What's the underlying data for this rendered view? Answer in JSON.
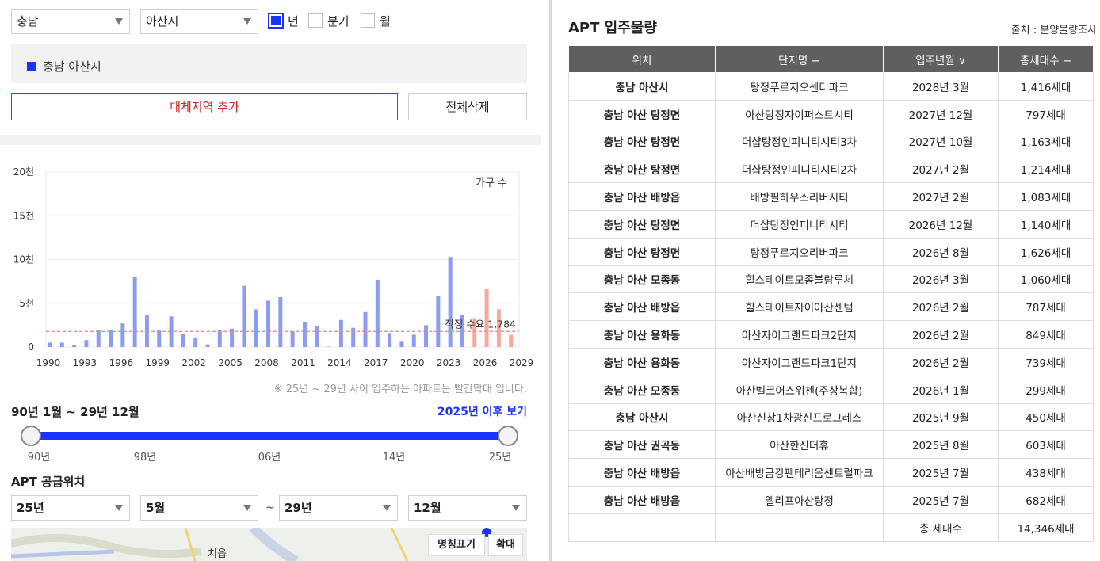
{
  "filters": {
    "province": "충남",
    "city": "아산시",
    "period_options": [
      {
        "label": "년",
        "checked": true
      },
      {
        "label": "분기",
        "checked": false
      },
      {
        "label": "월",
        "checked": false
      }
    ]
  },
  "region_list": {
    "items": [
      "충남 아산시"
    ],
    "color": "#1a33ff"
  },
  "buttons": {
    "add_region": "대체지역 추가",
    "clear_all": "전체삭제"
  },
  "chart_data": {
    "type": "bar",
    "legend": "가구 수",
    "x": [
      1990,
      1991,
      1992,
      1993,
      1994,
      1995,
      1996,
      1997,
      1998,
      1999,
      2000,
      2001,
      2002,
      2003,
      2004,
      2005,
      2006,
      2007,
      2008,
      2009,
      2010,
      2011,
      2012,
      2013,
      2014,
      2015,
      2016,
      2017,
      2018,
      2019,
      2020,
      2021,
      2022,
      2023,
      2024,
      2025,
      2026,
      2027,
      2028
    ],
    "values": [
      500,
      500,
      200,
      800,
      1900,
      2000,
      2700,
      8000,
      3700,
      1900,
      3500,
      1500,
      1100,
      300,
      2000,
      2100,
      7000,
      4300,
      5300,
      5700,
      1800,
      2900,
      2400,
      50,
      3100,
      2200,
      4000,
      7700,
      1600,
      700,
      1400,
      2500,
      5800,
      10300,
      3700,
      3300,
      6600,
      4300,
      1400
    ],
    "future_from": 2025,
    "colors": {
      "past": "#8c9cf2",
      "future": "#f7a79c",
      "reference": "#f08080"
    },
    "reference_label": "적정 수요 1,784",
    "reference_value": 1784,
    "y_ticks": [
      {
        "value": 0,
        "label": "0"
      },
      {
        "value": 5000,
        "label": "5천"
      },
      {
        "value": 10000,
        "label": "10천"
      },
      {
        "value": 15000,
        "label": "15천"
      },
      {
        "value": 20000,
        "label": "20천"
      }
    ],
    "x_ticks": [
      "1990",
      "1993",
      "1996",
      "1999",
      "2002",
      "2005",
      "2008",
      "2011",
      "2014",
      "2017",
      "2020",
      "2023",
      "2026",
      "2029"
    ],
    "ylim": [
      0,
      20000
    ],
    "grid": true,
    "legend_position": "top-right"
  },
  "chart_note": "※ 25년 ~ 29년 사이 입주하는 아파트는 빨간막대 입니다.",
  "range": {
    "title": "90년 1월 ~ 29년 12월",
    "link": "2025년 이후 보기",
    "labels": [
      "90년",
      "98년",
      "06년",
      "14년",
      "25년"
    ]
  },
  "supply": {
    "title": "APT 공급위치",
    "from_year": "25년",
    "from_month": "5월",
    "tilde": "~",
    "to_year": "29년",
    "to_month": "12월"
  },
  "map": {
    "label": "치읍",
    "btn_names": "명칭표기",
    "btn_zoom": "확대"
  },
  "table": {
    "title": "APT 입주물량",
    "source": "출처 : 분양물량조사",
    "headers": [
      "위치",
      "단지명 −",
      "입주년월 ∨",
      "총세대수 −"
    ],
    "rows": [
      [
        "충남 아산시",
        "탕정푸르지오센터파크",
        "2028년 3월",
        "1,416세대"
      ],
      [
        "충남 아산 탕정면",
        "아산탕정자이퍼스트시티",
        "2027년 12월",
        "797세대"
      ],
      [
        "충남 아산 탕정면",
        "더샵탕정인피니티시티3차",
        "2027년 10월",
        "1,163세대"
      ],
      [
        "충남 아산 탕정면",
        "더샵탕정인피니티시티2차",
        "2027년 2월",
        "1,214세대"
      ],
      [
        "충남 아산 배방읍",
        "배방필하우스리버시티",
        "2027년 2월",
        "1,083세대"
      ],
      [
        "충남 아산 탕정면",
        "더샵탕정인피니티시티",
        "2026년 12월",
        "1,140세대"
      ],
      [
        "충남 아산 탕정면",
        "탕정푸르지오리버파크",
        "2026년 8월",
        "1,626세대"
      ],
      [
        "충남 아산 모종동",
        "힐스테이트모종블랑루체",
        "2026년 3월",
        "1,060세대"
      ],
      [
        "충남 아산 배방읍",
        "힐스테이트자이아산센텀",
        "2026년 2월",
        "787세대"
      ],
      [
        "충남 아산 용화동",
        "아산자이그랜드파크2단지",
        "2026년 2월",
        "849세대"
      ],
      [
        "충남 아산 용화동",
        "아산자이그랜드파크1단지",
        "2026년 2월",
        "739세대"
      ],
      [
        "충남 아산 모종동",
        "아산벨코어스위첸(주상복합)",
        "2026년 1월",
        "299세대"
      ],
      [
        "충남 아산시",
        "아산신창1차광신프로그레스",
        "2025년 9월",
        "450세대"
      ],
      [
        "충남 아산 권곡동",
        "아산한신더휴",
        "2025년 8월",
        "603세대"
      ],
      [
        "충남 아산 배방읍",
        "아산배방금강펜테리움센트럴파크",
        "2025년 7월",
        "438세대"
      ],
      [
        "충남 아산 배방읍",
        "엘리프아산탕정",
        "2025년 7월",
        "682세대"
      ]
    ],
    "total_label": "총 세대수",
    "total_value": "14,346세대"
  }
}
